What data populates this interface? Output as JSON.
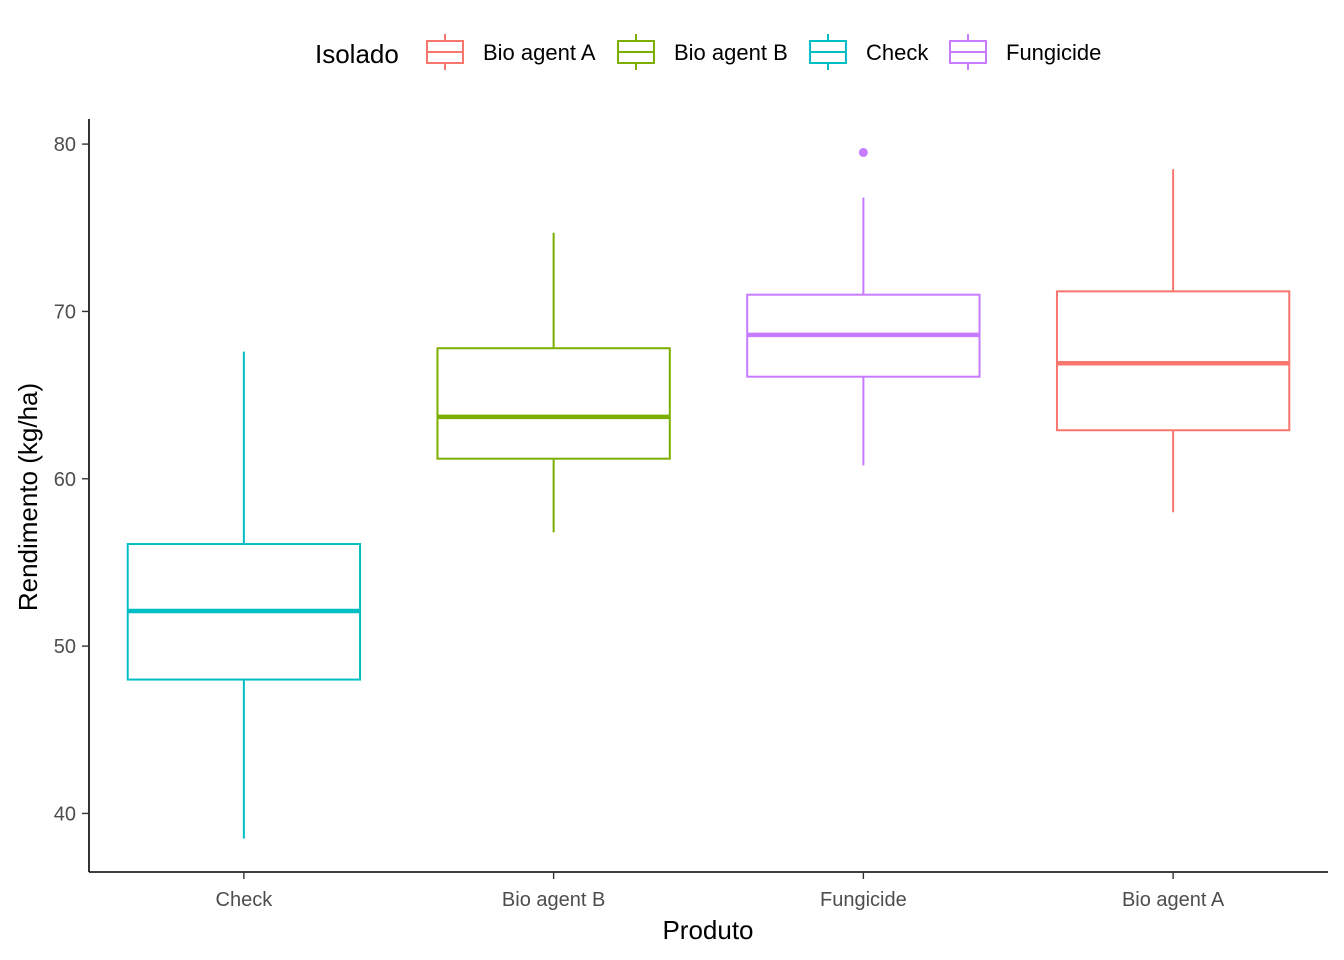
{
  "chart_data": {
    "type": "boxplot",
    "xlabel": "Produto",
    "ylabel": "Rendimento (kg/ha)",
    "ylim": [
      36.5,
      81.5
    ],
    "yticks": [
      40,
      50,
      60,
      70,
      80
    ],
    "grid": false,
    "legend": {
      "title": "Isolado",
      "position": "top",
      "entries": [
        {
          "name": "Bio agent A",
          "color": "#F8766D"
        },
        {
          "name": "Bio agent B",
          "color": "#7CAE00"
        },
        {
          "name": "Check",
          "color": "#00BFC4"
        },
        {
          "name": "Fungicide",
          "color": "#C77CFF"
        }
      ]
    },
    "categories": [
      "Check",
      "Bio agent B",
      "Fungicide",
      "Bio agent A"
    ],
    "boxes": [
      {
        "category": "Check",
        "group": "Check",
        "color": "#00BFC4",
        "whisker_low": 38.5,
        "q1": 48.0,
        "median": 52.1,
        "q3": 56.1,
        "whisker_high": 67.6,
        "outliers": []
      },
      {
        "category": "Bio agent B",
        "group": "Bio agent B",
        "color": "#7CAE00",
        "whisker_low": 56.8,
        "q1": 61.2,
        "median": 63.7,
        "q3": 67.8,
        "whisker_high": 74.7,
        "outliers": []
      },
      {
        "category": "Fungicide",
        "group": "Fungicide",
        "color": "#C77CFF",
        "whisker_low": 60.8,
        "q1": 66.1,
        "median": 68.6,
        "q3": 71.0,
        "whisker_high": 76.8,
        "outliers": [
          79.5
        ]
      },
      {
        "category": "Bio agent A",
        "group": "Bio agent A",
        "color": "#F8766D",
        "whisker_low": 58.0,
        "q1": 62.9,
        "median": 66.9,
        "q3": 71.2,
        "whisker_high": 78.5,
        "outliers": []
      }
    ]
  }
}
